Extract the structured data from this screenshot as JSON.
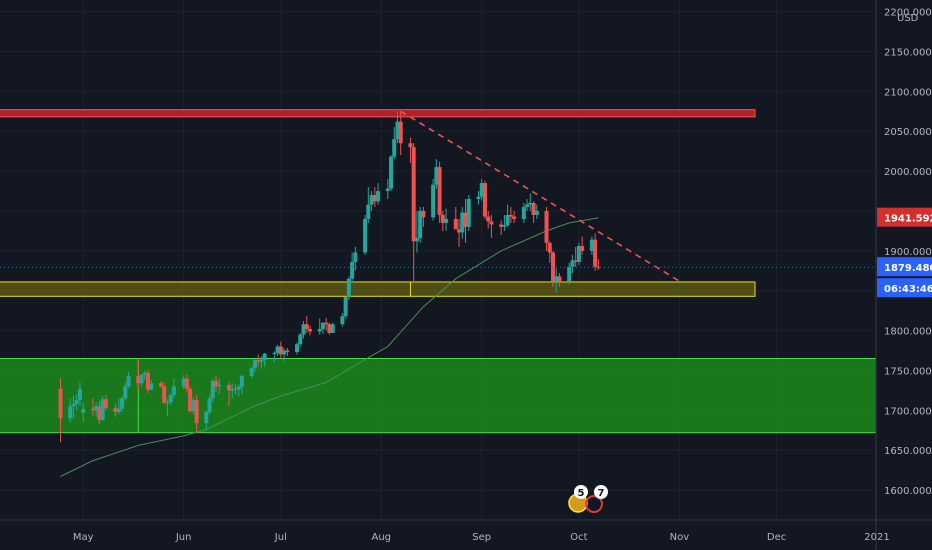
{
  "chart_data": {
    "type": "candlestick",
    "currency": "USD",
    "x_ticks": [
      "May",
      "Jun",
      "Jul",
      "Aug",
      "Sep",
      "Oct",
      "Nov",
      "Dec",
      "2021"
    ],
    "y_ticks": [
      "1600.000",
      "1650.000",
      "1700.000",
      "1750.000",
      "1800.000",
      "1850.000",
      "1900.000",
      "1950.000",
      "2000.000",
      "2050.000",
      "2100.000",
      "2150.000",
      "2200.000"
    ],
    "ylim": [
      1560,
      2212
    ],
    "colors": {
      "up": "#26a69a",
      "down": "#ef5350",
      "ma": "#4c8c5a",
      "trend": "#ef5350"
    },
    "price_labels": [
      {
        "text": "1941.592",
        "color": "#d32f2f"
      },
      {
        "text": "1879.480",
        "color": "#2962ff"
      },
      {
        "text": "06:43:46",
        "color": "#2962ff"
      }
    ],
    "zones": [
      {
        "name": "resistance-zone",
        "from": 2068,
        "to": 2077,
        "color": "#c62828"
      },
      {
        "name": "support-zone",
        "from": 1843,
        "to": 1861,
        "color": "#d4c814"
      },
      {
        "name": "demand-zone",
        "from": 1672,
        "to": 1765,
        "color": "#1b8a1b"
      }
    ],
    "trendline": {
      "from": [
        "2020-08-07",
        2075
      ],
      "to": [
        "2020-11-01",
        1862
      ]
    },
    "event_badges": [
      "5",
      "7"
    ],
    "candles": [
      [
        "2020-04-24",
        1727,
        1740,
        1660,
        1690
      ],
      [
        "2020-04-27",
        1690,
        1715,
        1685,
        1705
      ],
      [
        "2020-04-28",
        1705,
        1718,
        1690,
        1708
      ],
      [
        "2020-04-29",
        1708,
        1720,
        1700,
        1713
      ],
      [
        "2020-04-30",
        1713,
        1735,
        1705,
        1727
      ],
      [
        "2020-05-01",
        1697,
        1710,
        1685,
        1702
      ],
      [
        "2020-05-04",
        1702,
        1715,
        1693,
        1700
      ],
      [
        "2020-05-05",
        1700,
        1710,
        1692,
        1705
      ],
      [
        "2020-05-06",
        1705,
        1712,
        1683,
        1688
      ],
      [
        "2020-05-07",
        1688,
        1718,
        1686,
        1714
      ],
      [
        "2020-05-08",
        1714,
        1720,
        1700,
        1703
      ],
      [
        "2020-05-11",
        1703,
        1708,
        1692,
        1698
      ],
      [
        "2020-05-12",
        1698,
        1715,
        1695,
        1702
      ],
      [
        "2020-05-13",
        1702,
        1717,
        1698,
        1715
      ],
      [
        "2020-05-14",
        1715,
        1735,
        1712,
        1730
      ],
      [
        "2020-05-15",
        1730,
        1748,
        1728,
        1743
      ],
      [
        "2020-05-18",
        1743,
        1765,
        1725,
        1734
      ],
      [
        "2020-05-19",
        1734,
        1745,
        1730,
        1745
      ],
      [
        "2020-05-20",
        1745,
        1750,
        1738,
        1747
      ],
      [
        "2020-05-21",
        1747,
        1750,
        1722,
        1726
      ],
      [
        "2020-05-22",
        1726,
        1738,
        1725,
        1734
      ],
      [
        "2020-05-25",
        1734,
        1737,
        1728,
        1730
      ],
      [
        "2020-05-26",
        1730,
        1735,
        1710,
        1709
      ],
      [
        "2020-05-27",
        1709,
        1714,
        1693,
        1710
      ],
      [
        "2020-05-28",
        1710,
        1722,
        1706,
        1719
      ],
      [
        "2020-05-29",
        1719,
        1740,
        1715,
        1730
      ],
      [
        "2020-06-01",
        1730,
        1744,
        1726,
        1740
      ],
      [
        "2020-06-02",
        1740,
        1745,
        1722,
        1727
      ],
      [
        "2020-06-03",
        1727,
        1730,
        1697,
        1699
      ],
      [
        "2020-06-04",
        1699,
        1716,
        1695,
        1713
      ],
      [
        "2020-06-05",
        1713,
        1720,
        1672,
        1684
      ],
      [
        "2020-06-08",
        1684,
        1700,
        1676,
        1698
      ],
      [
        "2020-06-09",
        1698,
        1720,
        1695,
        1715
      ],
      [
        "2020-06-10",
        1715,
        1740,
        1710,
        1737
      ],
      [
        "2020-06-11",
        1737,
        1744,
        1723,
        1730
      ],
      [
        "2020-06-12",
        1730,
        1740,
        1720,
        1732
      ],
      [
        "2020-06-15",
        1732,
        1735,
        1705,
        1725
      ],
      [
        "2020-06-16",
        1725,
        1734,
        1715,
        1727
      ],
      [
        "2020-06-17",
        1727,
        1733,
        1720,
        1726
      ],
      [
        "2020-06-18",
        1726,
        1733,
        1718,
        1730
      ],
      [
        "2020-06-19",
        1730,
        1745,
        1720,
        1743
      ],
      [
        "2020-06-22",
        1743,
        1755,
        1740,
        1753
      ],
      [
        "2020-06-23",
        1753,
        1766,
        1748,
        1763
      ],
      [
        "2020-06-24",
        1763,
        1770,
        1755,
        1761
      ],
      [
        "2020-06-25",
        1761,
        1768,
        1752,
        1763
      ],
      [
        "2020-06-26",
        1763,
        1772,
        1755,
        1771
      ],
      [
        "2020-06-29",
        1771,
        1774,
        1760,
        1772
      ],
      [
        "2020-06-30",
        1772,
        1782,
        1768,
        1780
      ],
      [
        "2020-07-01",
        1780,
        1786,
        1765,
        1770
      ],
      [
        "2020-07-02",
        1770,
        1778,
        1762,
        1775
      ],
      [
        "2020-07-03",
        1775,
        1778,
        1768,
        1773
      ],
      [
        "2020-07-06",
        1773,
        1785,
        1770,
        1783
      ],
      [
        "2020-07-07",
        1783,
        1797,
        1780,
        1795
      ],
      [
        "2020-07-08",
        1795,
        1812,
        1790,
        1808
      ],
      [
        "2020-07-09",
        1808,
        1818,
        1797,
        1802
      ],
      [
        "2020-07-10",
        1802,
        1806,
        1794,
        1799
      ],
      [
        "2020-07-13",
        1799,
        1815,
        1795,
        1802
      ],
      [
        "2020-07-14",
        1802,
        1810,
        1796,
        1810
      ],
      [
        "2020-07-15",
        1810,
        1816,
        1800,
        1808
      ],
      [
        "2020-07-16",
        1808,
        1810,
        1795,
        1797
      ],
      [
        "2020-07-17",
        1797,
        1810,
        1797,
        1808
      ],
      [
        "2020-07-20",
        1808,
        1822,
        1805,
        1818
      ],
      [
        "2020-07-21",
        1818,
        1843,
        1815,
        1842
      ],
      [
        "2020-07-22",
        1842,
        1868,
        1838,
        1865
      ],
      [
        "2020-07-23",
        1865,
        1898,
        1860,
        1886
      ],
      [
        "2020-07-24",
        1886,
        1905,
        1875,
        1898
      ],
      [
        "2020-07-27",
        1898,
        1945,
        1895,
        1940
      ],
      [
        "2020-07-28",
        1940,
        1980,
        1935,
        1958
      ],
      [
        "2020-07-29",
        1958,
        1975,
        1950,
        1970
      ],
      [
        "2020-07-30",
        1970,
        1980,
        1955,
        1962
      ],
      [
        "2020-07-31",
        1962,
        1985,
        1958,
        1975
      ],
      [
        "2020-08-03",
        1975,
        1990,
        1965,
        1978
      ],
      [
        "2020-08-04",
        1978,
        2020,
        1975,
        2018
      ],
      [
        "2020-08-05",
        2018,
        2055,
        2015,
        2040
      ],
      [
        "2020-08-06",
        2040,
        2075,
        2035,
        2062
      ],
      [
        "2020-08-07",
        2062,
        2075,
        2020,
        2035
      ],
      [
        "2020-08-10",
        2035,
        2042,
        2010,
        2030
      ],
      [
        "2020-08-11",
        2030,
        2035,
        1860,
        1912
      ],
      [
        "2020-08-12",
        1912,
        1950,
        1898,
        1916
      ],
      [
        "2020-08-13",
        1916,
        1955,
        1910,
        1950
      ],
      [
        "2020-08-14",
        1950,
        1955,
        1930,
        1942
      ],
      [
        "2020-08-17",
        1942,
        1990,
        1938,
        1983
      ],
      [
        "2020-08-18",
        1983,
        2015,
        1978,
        2005
      ],
      [
        "2020-08-19",
        2005,
        2012,
        1935,
        1945
      ],
      [
        "2020-08-20",
        1945,
        1950,
        1925,
        1935
      ],
      [
        "2020-08-21",
        1935,
        1953,
        1925,
        1940
      ],
      [
        "2020-08-24",
        1940,
        1955,
        1930,
        1927
      ],
      [
        "2020-08-25",
        1927,
        1940,
        1905,
        1923
      ],
      [
        "2020-08-26",
        1923,
        1955,
        1915,
        1948
      ],
      [
        "2020-08-27",
        1948,
        1965,
        1910,
        1930
      ],
      [
        "2020-08-28",
        1930,
        1970,
        1925,
        1965
      ],
      [
        "2020-08-31",
        1965,
        1975,
        1958,
        1968
      ],
      [
        "2020-09-01",
        1968,
        1990,
        1963,
        1985
      ],
      [
        "2020-09-02",
        1985,
        1988,
        1940,
        1943
      ],
      [
        "2020-09-03",
        1943,
        1950,
        1928,
        1937
      ],
      [
        "2020-09-04",
        1937,
        1945,
        1916,
        1933
      ],
      [
        "2020-09-07",
        1933,
        1938,
        1920,
        1930
      ],
      [
        "2020-09-08",
        1930,
        1945,
        1925,
        1932
      ],
      [
        "2020-09-09",
        1932,
        1958,
        1930,
        1945
      ],
      [
        "2020-09-10",
        1945,
        1955,
        1935,
        1943
      ],
      [
        "2020-09-11",
        1943,
        1950,
        1935,
        1940
      ],
      [
        "2020-09-14",
        1940,
        1960,
        1935,
        1955
      ],
      [
        "2020-09-15",
        1955,
        1965,
        1950,
        1958
      ],
      [
        "2020-09-16",
        1958,
        1972,
        1950,
        1960
      ],
      [
        "2020-09-17",
        1960,
        1962,
        1935,
        1945
      ],
      [
        "2020-09-18",
        1945,
        1958,
        1940,
        1950
      ],
      [
        "2020-09-21",
        1950,
        1955,
        1900,
        1910
      ],
      [
        "2020-09-22",
        1910,
        1912,
        1885,
        1898
      ],
      [
        "2020-09-23",
        1898,
        1900,
        1855,
        1862
      ],
      [
        "2020-09-24",
        1862,
        1878,
        1848,
        1868
      ],
      [
        "2020-09-25",
        1868,
        1872,
        1855,
        1862
      ],
      [
        "2020-09-28",
        1862,
        1885,
        1858,
        1880
      ],
      [
        "2020-09-29",
        1880,
        1895,
        1872,
        1888
      ],
      [
        "2020-09-30",
        1888,
        1905,
        1880,
        1886
      ],
      [
        "2020-10-01",
        1886,
        1910,
        1882,
        1906
      ],
      [
        "2020-10-02",
        1906,
        1918,
        1895,
        1900
      ],
      [
        "2020-10-05",
        1900,
        1918,
        1895,
        1914
      ],
      [
        "2020-10-06",
        1914,
        1922,
        1875,
        1880
      ],
      [
        "2020-10-07",
        1880,
        1890,
        1876,
        1879
      ]
    ],
    "ma": [
      [
        "2020-04-24",
        1617
      ],
      [
        "2020-05-04",
        1637
      ],
      [
        "2020-05-18",
        1656
      ],
      [
        "2020-06-01",
        1668
      ],
      [
        "2020-06-08",
        1676
      ],
      [
        "2020-06-22",
        1704
      ],
      [
        "2020-07-01",
        1718
      ],
      [
        "2020-07-15",
        1735
      ],
      [
        "2020-07-22",
        1752
      ],
      [
        "2020-08-03",
        1780
      ],
      [
        "2020-08-14",
        1830
      ],
      [
        "2020-08-24",
        1865
      ],
      [
        "2020-09-07",
        1900
      ],
      [
        "2020-09-21",
        1925
      ],
      [
        "2020-09-28",
        1935
      ],
      [
        "2020-10-07",
        1941.6
      ]
    ]
  }
}
